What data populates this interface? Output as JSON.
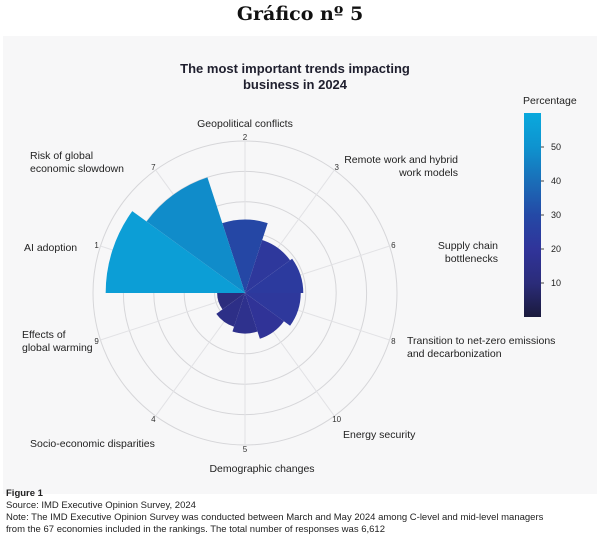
{
  "heading": "Gráfico nº 5",
  "chart_data": {
    "type": "polar-bar",
    "title_line1": "The most important trends impacting",
    "title_line2": "business in 2024",
    "colorbar": {
      "title": "Percentage",
      "ticks": [
        10,
        20,
        30,
        40,
        50
      ],
      "range": [
        0,
        60
      ],
      "colors": [
        "#1a1a3c",
        "#2b2c7a",
        "#30349a",
        "#2449a6",
        "#1a6eb8",
        "#0e93cf",
        "#0aa9dd"
      ]
    },
    "radial_range": [
      0,
      60
    ],
    "categories": [
      {
        "label_lines": [
          "Geopolitical conflicts"
        ],
        "rank": "2",
        "value": 29
      },
      {
        "label_lines": [
          "Remote work and hybrid",
          "work models"
        ],
        "rank": "3",
        "value": 22
      },
      {
        "label_lines": [
          "Supply chain",
          "bottlenecks"
        ],
        "rank": "6",
        "value": 23
      },
      {
        "label_lines": [
          "Transition to net-zero emissions",
          "and decarbonization"
        ],
        "rank": "8",
        "value": 22
      },
      {
        "label_lines": [
          "Energy security"
        ],
        "rank": "10",
        "value": 19
      },
      {
        "label_lines": [
          "Demographic changes"
        ],
        "rank": "5",
        "value": 16
      },
      {
        "label_lines": [
          "Socio-economic disparities"
        ],
        "rank": "4",
        "value": 14
      },
      {
        "label_lines": [
          "Effects of",
          "global warming"
        ],
        "rank": "9",
        "value": 11
      },
      {
        "label_lines": [
          "AI adoption"
        ],
        "rank": "1",
        "value": 55
      },
      {
        "label_lines": [
          "Risk of global",
          "economic slowdown"
        ],
        "rank": "7",
        "value": 48
      }
    ]
  },
  "footer": {
    "figure": "Figure 1",
    "source": "Source: IMD Executive Opinion Survey, 2024",
    "note_line1": "Note: The IMD Executive Opinion Survey was conducted between March and May 2024 among C-level and mid-level managers",
    "note_line2": "from the 67 economies included in the rankings. The total number of responses was 6,612"
  }
}
